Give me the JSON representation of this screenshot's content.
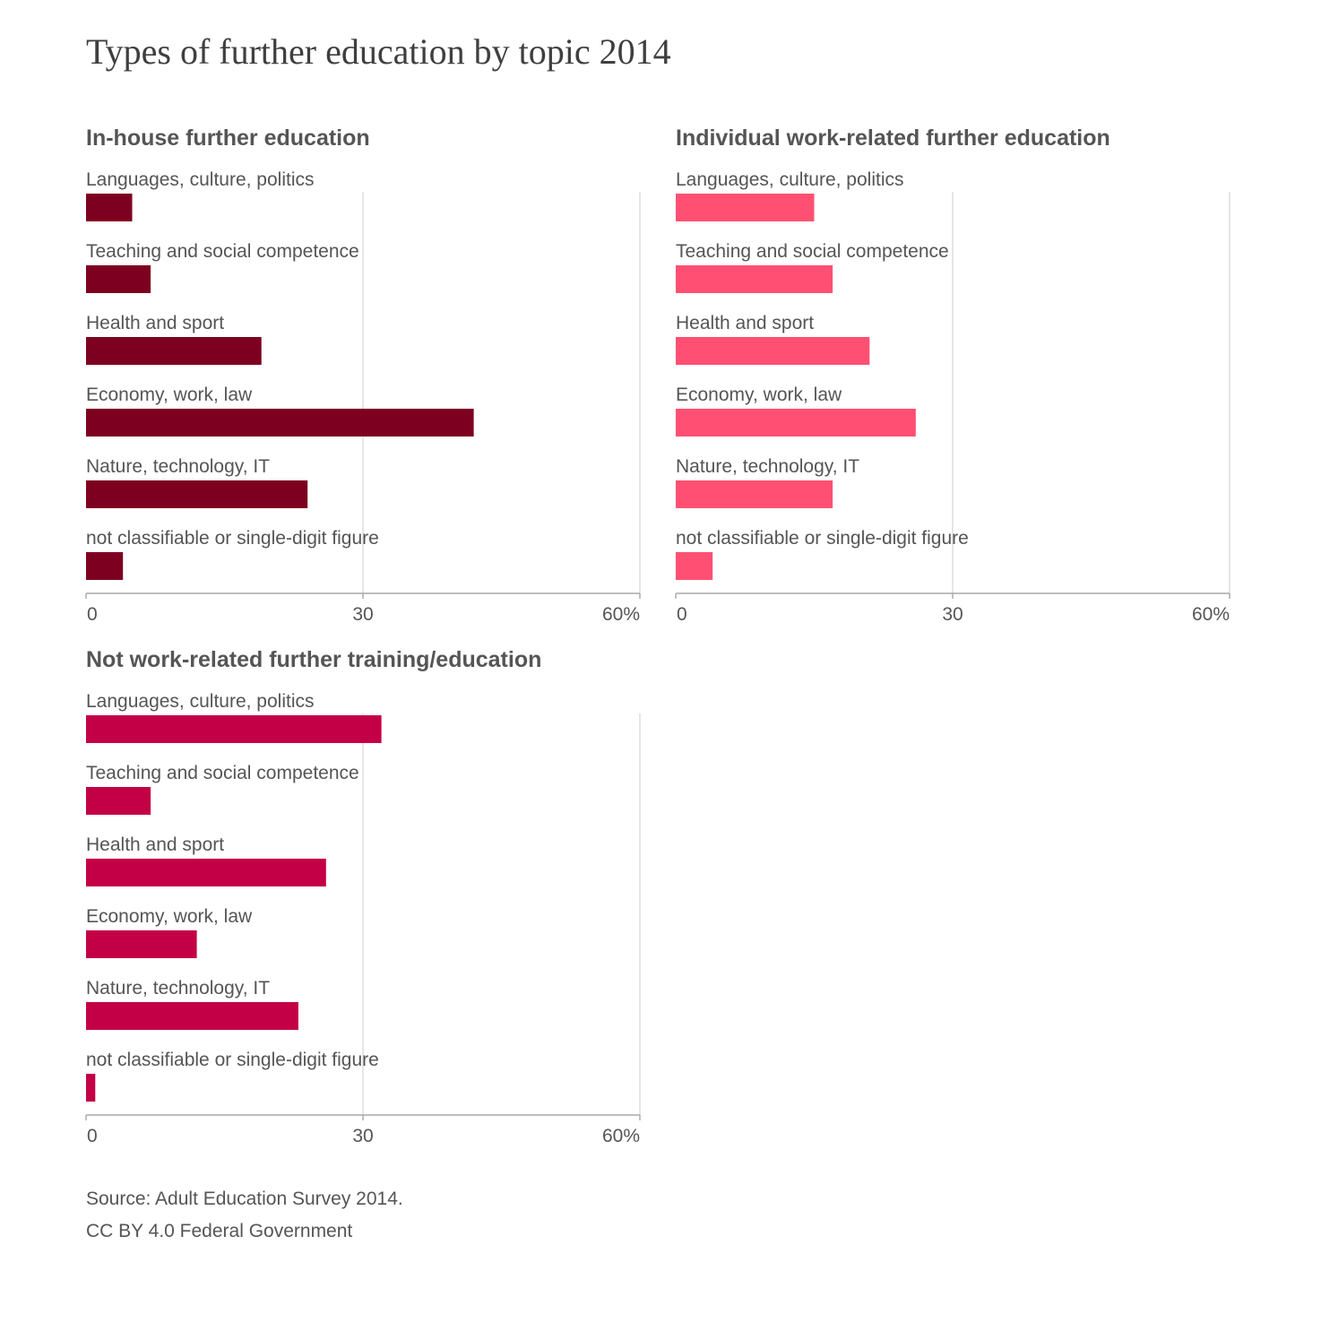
{
  "title": "Types of further education by topic 2014",
  "footer": {
    "source": "Source: Adult Education Survey 2014.",
    "license": "CC BY 4.0 Federal Government"
  },
  "chart_data": [
    {
      "type": "bar",
      "orientation": "horizontal",
      "title": "In-house further education",
      "categories": [
        "Languages, culture, politics",
        "Teaching and social competence",
        "Health and sport",
        "Economy, work, law",
        "Nature, technology, IT",
        "not classifiable or single-digit figure"
      ],
      "values": [
        5,
        7,
        19,
        42,
        24,
        4
      ],
      "color": "#7e0021",
      "xlim": [
        0,
        60
      ],
      "ticks": [
        "0",
        "30",
        "60%"
      ],
      "grid": true
    },
    {
      "type": "bar",
      "orientation": "horizontal",
      "title": "Individual work-related further education",
      "categories": [
        "Languages, culture, politics",
        "Teaching and social competence",
        "Health and sport",
        "Economy, work, law",
        "Nature, technology, IT",
        "not classifiable or single-digit figure"
      ],
      "values": [
        15,
        17,
        21,
        26,
        17,
        4
      ],
      "color": "#ff5073",
      "xlim": [
        0,
        60
      ],
      "ticks": [
        "0",
        "30",
        "60%"
      ],
      "grid": true
    },
    {
      "type": "bar",
      "orientation": "horizontal",
      "title": "Not work-related further training/education",
      "categories": [
        "Languages, culture, politics",
        "Teaching and social competence",
        "Health and sport",
        "Economy, work, law",
        "Nature, technology, IT",
        "not classifiable or single-digit figure"
      ],
      "values": [
        32,
        7,
        26,
        12,
        23,
        1
      ],
      "color": "#c30046",
      "xlim": [
        0,
        60
      ],
      "ticks": [
        "0",
        "30",
        "60%"
      ],
      "grid": true
    }
  ]
}
